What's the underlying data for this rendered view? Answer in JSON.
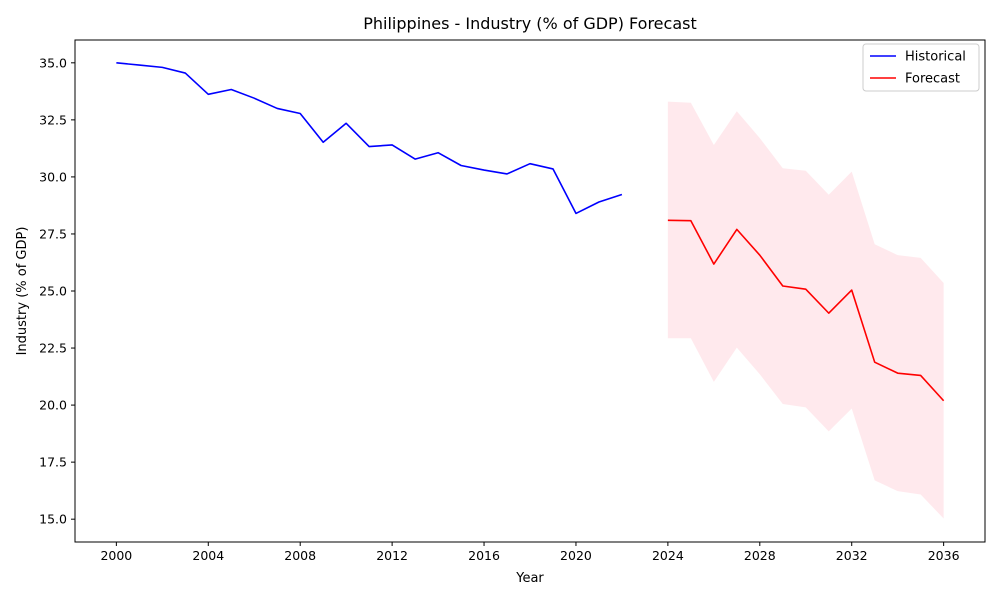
{
  "chart_data": {
    "type": "line",
    "title": "Philippines - Industry (% of GDP) Forecast",
    "xlabel": "Year",
    "ylabel": "Industry (% of GDP)",
    "xlim": [
      1998.2,
      2037.8
    ],
    "ylim": [
      14.0,
      36.0
    ],
    "xticks": [
      2000,
      2004,
      2008,
      2012,
      2016,
      2020,
      2024,
      2028,
      2032,
      2036
    ],
    "yticks": [
      15.0,
      17.5,
      20.0,
      22.5,
      25.0,
      27.5,
      30.0,
      32.5,
      35.0
    ],
    "grid": false,
    "legend_position": "top-right",
    "colors": {
      "historical": "#0000ff",
      "forecast": "#ff0000",
      "band": "#ffc0cb"
    },
    "series": [
      {
        "name": "Historical",
        "x": [
          2000,
          2001,
          2002,
          2003,
          2004,
          2005,
          2006,
          2007,
          2008,
          2009,
          2010,
          2011,
          2012,
          2013,
          2014,
          2015,
          2016,
          2017,
          2018,
          2019,
          2020,
          2021,
          2022
        ],
        "y": [
          35.0,
          34.9,
          34.8,
          34.55,
          33.62,
          33.83,
          33.45,
          33.0,
          32.78,
          31.52,
          32.35,
          31.33,
          31.4,
          30.78,
          31.06,
          30.5,
          30.3,
          30.13,
          30.58,
          30.35,
          28.4,
          28.9,
          29.23
        ]
      },
      {
        "name": "Forecast",
        "x": [
          2024,
          2025,
          2026,
          2027,
          2028,
          2029,
          2030,
          2031,
          2032,
          2033,
          2034,
          2035,
          2036
        ],
        "y": [
          28.1,
          28.08,
          26.18,
          27.7,
          26.57,
          25.22,
          25.08,
          24.03,
          25.04,
          21.88,
          21.4,
          21.3,
          20.19
        ]
      }
    ],
    "confidence_band": {
      "x": [
        2024,
        2025,
        2026,
        2027,
        2028,
        2029,
        2030,
        2031,
        2032,
        2033,
        2034,
        2035,
        2036
      ],
      "upper": [
        33.3,
        33.25,
        31.4,
        32.88,
        31.7,
        30.38,
        30.27,
        29.22,
        30.23,
        27.05,
        26.57,
        26.45,
        25.35
      ],
      "lower": [
        22.93,
        22.93,
        21.02,
        22.52,
        21.35,
        20.05,
        19.9,
        18.85,
        19.85,
        16.7,
        16.23,
        16.08,
        15.03
      ]
    }
  }
}
